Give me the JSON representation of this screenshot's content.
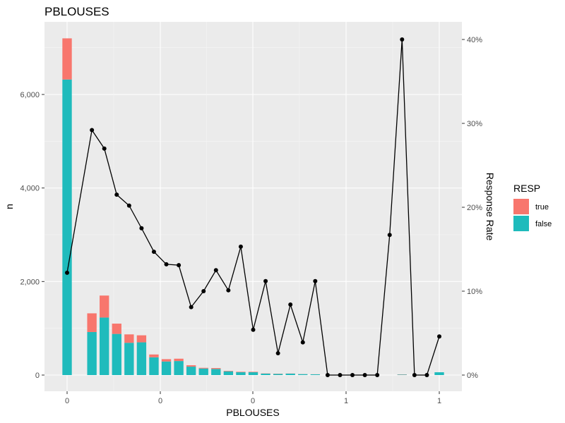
{
  "chart_data": {
    "type": "bar",
    "title": "PBLOUSES",
    "xlabel": "PBLOUSES",
    "ylabel": "n",
    "y2label": "Response Rate",
    "grid": true,
    "legend": {
      "title": "RESP",
      "placement": "right"
    },
    "x_tick_labels": [
      "0",
      "0",
      "0",
      "1",
      "1"
    ],
    "y_tick_labels": [
      "0",
      "2,000",
      "4,000",
      "6,000"
    ],
    "y2_tick_labels": [
      "0%",
      "10%",
      "20%",
      "30%",
      "40%"
    ],
    "ylim": [
      0,
      7200
    ],
    "y2lim": [
      0,
      40
    ],
    "categories_count": 31,
    "series": [
      {
        "name": "false",
        "color": "#1FBBBC",
        "values": [
          6320,
          0,
          920,
          1230,
          880,
          690,
          700,
          380,
          290,
          300,
          180,
          140,
          130,
          80,
          60,
          60,
          30,
          25,
          30,
          20,
          15,
          0,
          0,
          0,
          0,
          0,
          0,
          10,
          0,
          0,
          60
        ]
      },
      {
        "name": "true",
        "color": "#F8766D",
        "values": [
          880,
          0,
          400,
          470,
          220,
          180,
          150,
          60,
          50,
          50,
          30,
          15,
          20,
          10,
          10,
          10,
          5,
          5,
          3,
          2,
          2,
          0,
          0,
          0,
          0,
          0,
          0,
          5,
          0,
          0,
          0
        ]
      }
    ],
    "line_series": {
      "name": "Response Rate",
      "color": "#000000",
      "points": [
        {
          "i": 0,
          "v": 12.2
        },
        {
          "i": 2,
          "v": 29.2
        },
        {
          "i": 3,
          "v": 27.0
        },
        {
          "i": 4,
          "v": 21.5
        },
        {
          "i": 5,
          "v": 20.2
        },
        {
          "i": 6,
          "v": 17.5
        },
        {
          "i": 7,
          "v": 14.7
        },
        {
          "i": 8,
          "v": 13.2
        },
        {
          "i": 9,
          "v": 13.1
        },
        {
          "i": 10,
          "v": 8.1
        },
        {
          "i": 11,
          "v": 10.0
        },
        {
          "i": 12,
          "v": 12.5
        },
        {
          "i": 13,
          "v": 10.1
        },
        {
          "i": 14,
          "v": 15.3
        },
        {
          "i": 15,
          "v": 5.4
        },
        {
          "i": 16,
          "v": 11.2
        },
        {
          "i": 17,
          "v": 2.6
        },
        {
          "i": 18,
          "v": 8.4
        },
        {
          "i": 19,
          "v": 3.9
        },
        {
          "i": 20,
          "v": 11.2
        },
        {
          "i": 21,
          "v": 0
        },
        {
          "i": 22,
          "v": 0
        },
        {
          "i": 23,
          "v": 0
        },
        {
          "i": 24,
          "v": 0
        },
        {
          "i": 25,
          "v": 0
        },
        {
          "i": 26,
          "v": 16.7
        },
        {
          "i": 27,
          "v": 40.0
        },
        {
          "i": 28,
          "v": 0
        },
        {
          "i": 29,
          "v": 0
        },
        {
          "i": 30,
          "v": 4.6
        }
      ]
    }
  }
}
